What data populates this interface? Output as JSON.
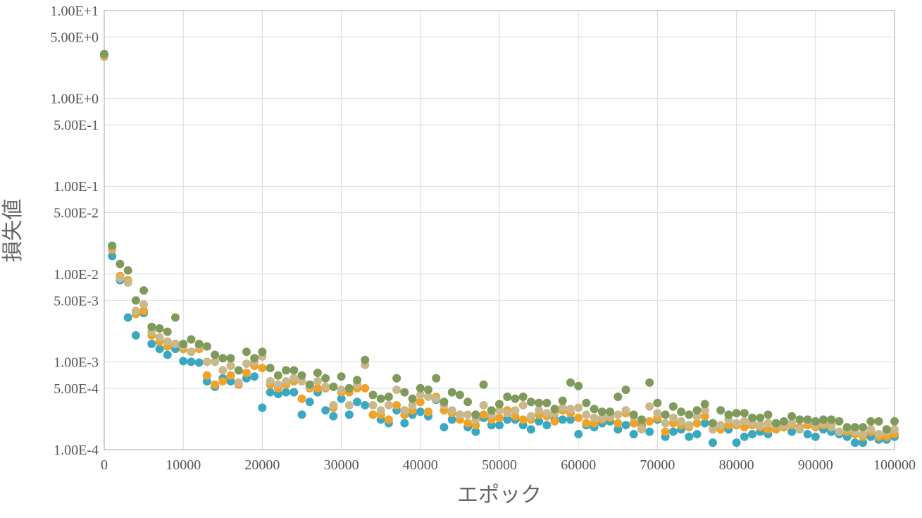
{
  "chart_data": {
    "type": "scatter",
    "xlabel": "エポック",
    "ylabel": "損失値",
    "xlim": [
      0,
      100000
    ],
    "ylim": [
      0.0001,
      10
    ],
    "yscale": "log",
    "grid": true,
    "legend": "none",
    "x_ticks": [
      {
        "value": 0,
        "label": "0"
      },
      {
        "value": 10000,
        "label": "10000"
      },
      {
        "value": 20000,
        "label": "20000"
      },
      {
        "value": 30000,
        "label": "30000"
      },
      {
        "value": 40000,
        "label": "40000"
      },
      {
        "value": 50000,
        "label": "50000"
      },
      {
        "value": 60000,
        "label": "60000"
      },
      {
        "value": 70000,
        "label": "70000"
      },
      {
        "value": 80000,
        "label": "80000"
      },
      {
        "value": 90000,
        "label": "90000"
      },
      {
        "value": 100000,
        "label": "100000"
      }
    ],
    "y_ticks": [
      {
        "value": 10,
        "label": "1.00E+1"
      },
      {
        "value": 5,
        "label": "5.00E+0"
      },
      {
        "value": 1,
        "label": "1.00E+0"
      },
      {
        "value": 0.5,
        "label": "5.00E-1"
      },
      {
        "value": 0.1,
        "label": "1.00E-1"
      },
      {
        "value": 0.05,
        "label": "5.00E-2"
      },
      {
        "value": 0.01,
        "label": "1.00E-2"
      },
      {
        "value": 0.005,
        "label": "5.00E-3"
      },
      {
        "value": 0.001,
        "label": "1.00E-3"
      },
      {
        "value": 0.0005,
        "label": "5.00E-4"
      },
      {
        "value": 0.0001,
        "label": "1.00E-4"
      }
    ],
    "series": [
      {
        "color": "#3aa8c1",
        "x": [
          0,
          1000,
          2000,
          3000,
          4000,
          5000,
          6000,
          7000,
          8000,
          9000,
          10000,
          11000,
          12000,
          13000,
          14000,
          15000,
          16000,
          17000,
          18000,
          19000,
          20000,
          21000,
          22000,
          23000,
          24000,
          25000,
          26000,
          27000,
          28000,
          29000,
          30000,
          31000,
          32000,
          33000,
          34000,
          35000,
          36000,
          37000,
          38000,
          39000,
          40000,
          41000,
          42000,
          43000,
          44000,
          45000,
          46000,
          47000,
          48000,
          49000,
          50000,
          51000,
          52000,
          53000,
          54000,
          55000,
          56000,
          57000,
          58000,
          59000,
          60000,
          61000,
          62000,
          63000,
          64000,
          65000,
          66000,
          67000,
          68000,
          69000,
          70000,
          71000,
          72000,
          73000,
          74000,
          75000,
          76000,
          77000,
          78000,
          79000,
          80000,
          81000,
          82000,
          83000,
          84000,
          85000,
          86000,
          87000,
          88000,
          89000,
          90000,
          91000,
          92000,
          93000,
          94000,
          95000,
          96000,
          97000,
          98000,
          99000,
          100000
        ],
        "y": [
          3.0,
          0.016,
          0.0085,
          0.0032,
          0.002,
          0.0036,
          0.0016,
          0.0014,
          0.0012,
          0.0014,
          0.00102,
          0.001,
          0.00098,
          0.0006,
          0.00052,
          0.00065,
          0.0006,
          0.00055,
          0.00065,
          0.00068,
          0.0003,
          0.00045,
          0.00043,
          0.00045,
          0.00045,
          0.00025,
          0.00035,
          0.00045,
          0.00028,
          0.00024,
          0.00038,
          0.00025,
          0.00035,
          0.00032,
          0.00025,
          0.00022,
          0.0002,
          0.00028,
          0.0002,
          0.00025,
          0.00027,
          0.00024,
          0.00037,
          0.00018,
          0.00022,
          0.00025,
          0.00018,
          0.00016,
          0.00023,
          0.00019,
          0.00019,
          0.00022,
          0.00022,
          0.00019,
          0.00017,
          0.00021,
          0.00019,
          0.00022,
          0.00022,
          0.00022,
          0.00015,
          0.00019,
          0.00018,
          0.0002,
          0.00021,
          0.00017,
          0.00019,
          0.00015,
          0.00019,
          0.00016,
          0.00022,
          0.00014,
          0.00016,
          0.00017,
          0.00014,
          0.00015,
          0.0002,
          0.00012,
          0.00018,
          0.00017,
          0.00012,
          0.00014,
          0.00015,
          0.00016,
          0.00015,
          0.00017,
          0.00018,
          0.00016,
          0.00017,
          0.00015,
          0.00014,
          0.00017,
          0.00016,
          0.00015,
          0.00014,
          0.00012,
          0.00012,
          0.00014,
          0.00013,
          0.00013,
          0.00014
        ]
      },
      {
        "color": "#f0a229",
        "x": [
          0,
          1000,
          2000,
          3000,
          4000,
          5000,
          6000,
          7000,
          8000,
          9000,
          10000,
          11000,
          12000,
          13000,
          14000,
          15000,
          16000,
          17000,
          18000,
          19000,
          20000,
          21000,
          22000,
          23000,
          24000,
          25000,
          26000,
          27000,
          28000,
          29000,
          30000,
          31000,
          32000,
          33000,
          34000,
          35000,
          36000,
          37000,
          38000,
          39000,
          40000,
          41000,
          42000,
          43000,
          44000,
          45000,
          46000,
          47000,
          48000,
          49000,
          50000,
          51000,
          52000,
          53000,
          54000,
          55000,
          56000,
          57000,
          58000,
          59000,
          60000,
          61000,
          62000,
          63000,
          64000,
          65000,
          66000,
          67000,
          68000,
          69000,
          70000,
          71000,
          72000,
          73000,
          74000,
          75000,
          76000,
          77000,
          78000,
          79000,
          80000,
          81000,
          82000,
          83000,
          84000,
          85000,
          86000,
          87000,
          88000,
          89000,
          90000,
          91000,
          92000,
          93000,
          94000,
          95000,
          96000,
          97000,
          98000,
          99000,
          100000
        ],
        "y": [
          3.0,
          0.019,
          0.0095,
          0.0085,
          0.0035,
          0.0038,
          0.002,
          0.0017,
          0.0015,
          0.0016,
          0.0014,
          0.0013,
          0.0014,
          0.0007,
          0.00055,
          0.0006,
          0.0007,
          0.00055,
          0.00075,
          0.0009,
          0.00085,
          0.00055,
          0.0005,
          0.00055,
          0.0006,
          0.00038,
          0.0005,
          0.0005,
          0.0005,
          0.0003,
          0.00045,
          0.00045,
          0.0005,
          0.0005,
          0.00025,
          0.00025,
          0.00022,
          0.00032,
          0.00025,
          0.00028,
          0.00035,
          0.00027,
          0.0004,
          0.00028,
          0.00026,
          0.00022,
          0.0002,
          0.00019,
          0.00025,
          0.00022,
          0.00023,
          0.00028,
          0.00024,
          0.00022,
          0.00022,
          0.00025,
          0.00024,
          0.00021,
          0.00028,
          0.00026,
          0.00023,
          0.0002,
          0.0002,
          0.00022,
          0.00023,
          0.0002,
          0.00026,
          0.0002,
          0.00018,
          0.00021,
          0.00023,
          0.00016,
          0.0002,
          0.00019,
          0.00018,
          0.0002,
          0.00024,
          0.0002,
          0.00017,
          0.00019,
          0.00019,
          0.00018,
          0.00019,
          0.00018,
          0.00017,
          0.00017,
          0.00018,
          0.00019,
          0.00018,
          0.00019,
          0.00018,
          0.00019,
          0.00019,
          0.00016,
          0.00016,
          0.00015,
          0.00014,
          0.00016,
          0.00014,
          0.00014,
          0.00015
        ]
      },
      {
        "color": "#c8b88a",
        "x": [
          0,
          1000,
          2000,
          3000,
          4000,
          5000,
          6000,
          7000,
          8000,
          9000,
          10000,
          11000,
          12000,
          13000,
          14000,
          15000,
          16000,
          17000,
          18000,
          19000,
          20000,
          21000,
          22000,
          23000,
          24000,
          25000,
          26000,
          27000,
          28000,
          29000,
          30000,
          31000,
          32000,
          33000,
          34000,
          35000,
          36000,
          37000,
          38000,
          39000,
          40000,
          41000,
          42000,
          43000,
          44000,
          45000,
          46000,
          47000,
          48000,
          49000,
          50000,
          51000,
          52000,
          53000,
          54000,
          55000,
          56000,
          57000,
          58000,
          59000,
          60000,
          61000,
          62000,
          63000,
          64000,
          65000,
          66000,
          67000,
          68000,
          69000,
          70000,
          71000,
          72000,
          73000,
          74000,
          75000,
          76000,
          77000,
          78000,
          79000,
          80000,
          81000,
          82000,
          83000,
          84000,
          85000,
          86000,
          87000,
          88000,
          89000,
          90000,
          91000,
          92000,
          93000,
          94000,
          95000,
          96000,
          97000,
          98000,
          99000,
          100000
        ],
        "y": [
          3.1,
          0.02,
          0.009,
          0.008,
          0.0038,
          0.0045,
          0.0022,
          0.0019,
          0.0017,
          0.0016,
          0.0015,
          0.0013,
          0.0015,
          0.001,
          0.001,
          0.0008,
          0.0009,
          0.00058,
          0.00095,
          0.001,
          0.00115,
          0.0006,
          0.00055,
          0.0006,
          0.00065,
          0.0006,
          0.00052,
          0.0006,
          0.00052,
          0.00032,
          0.00048,
          0.00032,
          0.00055,
          0.00092,
          0.00032,
          0.00028,
          0.00032,
          0.00048,
          0.00028,
          0.00032,
          0.00042,
          0.0004,
          0.00038,
          0.00032,
          0.00028,
          0.00025,
          0.00025,
          0.00022,
          0.00032,
          0.00025,
          0.00028,
          0.00026,
          0.00028,
          0.00032,
          0.00024,
          0.00028,
          0.00026,
          0.00026,
          0.0003,
          0.00029,
          0.0003,
          0.00025,
          0.00023,
          0.00023,
          0.00024,
          0.00025,
          0.00028,
          0.00024,
          0.00017,
          0.00031,
          0.00026,
          0.0002,
          0.00023,
          0.00021,
          0.00019,
          0.00024,
          0.00028,
          0.00017,
          0.00019,
          0.00022,
          0.0002,
          0.00021,
          0.0002,
          0.00019,
          0.0002,
          0.00019,
          0.00019,
          0.0002,
          0.00017,
          0.00021,
          0.00019,
          0.0002,
          0.00018,
          0.00016,
          0.00017,
          0.00016,
          0.00015,
          0.00017,
          0.00015,
          0.00016,
          0.00017
        ]
      },
      {
        "color": "#7f9a5b",
        "x": [
          0,
          1000,
          2000,
          3000,
          4000,
          5000,
          6000,
          7000,
          8000,
          9000,
          10000,
          11000,
          12000,
          13000,
          14000,
          15000,
          16000,
          17000,
          18000,
          19000,
          20000,
          21000,
          22000,
          23000,
          24000,
          25000,
          26000,
          27000,
          28000,
          29000,
          30000,
          31000,
          32000,
          33000,
          34000,
          35000,
          36000,
          37000,
          38000,
          39000,
          40000,
          41000,
          42000,
          43000,
          44000,
          45000,
          46000,
          47000,
          48000,
          49000,
          50000,
          51000,
          52000,
          53000,
          54000,
          55000,
          56000,
          57000,
          58000,
          59000,
          60000,
          61000,
          62000,
          63000,
          64000,
          65000,
          66000,
          67000,
          68000,
          69000,
          70000,
          71000,
          72000,
          73000,
          74000,
          75000,
          76000,
          77000,
          78000,
          79000,
          80000,
          81000,
          82000,
          83000,
          84000,
          85000,
          86000,
          87000,
          88000,
          89000,
          90000,
          91000,
          92000,
          93000,
          94000,
          95000,
          96000,
          97000,
          98000,
          99000,
          100000
        ],
        "y": [
          3.2,
          0.021,
          0.013,
          0.011,
          0.005,
          0.0065,
          0.0025,
          0.0024,
          0.0022,
          0.0032,
          0.0016,
          0.0018,
          0.0016,
          0.0015,
          0.0012,
          0.0011,
          0.0011,
          0.0008,
          0.0013,
          0.0011,
          0.0013,
          0.00085,
          0.0007,
          0.0008,
          0.0008,
          0.0007,
          0.00055,
          0.00075,
          0.00065,
          0.00052,
          0.00068,
          0.0005,
          0.00062,
          0.00105,
          0.00042,
          0.00038,
          0.0004,
          0.00065,
          0.00045,
          0.00038,
          0.0005,
          0.00048,
          0.00065,
          0.00035,
          0.00045,
          0.00042,
          0.00035,
          0.00025,
          0.00055,
          0.00028,
          0.00033,
          0.0004,
          0.00038,
          0.0004,
          0.00035,
          0.00034,
          0.00034,
          0.00029,
          0.00036,
          0.00058,
          0.00053,
          0.00034,
          0.00029,
          0.00027,
          0.00027,
          0.0004,
          0.00048,
          0.00025,
          0.00022,
          0.00058,
          0.00034,
          0.00025,
          0.00031,
          0.00027,
          0.00025,
          0.00028,
          0.00033,
          0.0002,
          0.00028,
          0.00025,
          0.00026,
          0.00026,
          0.00023,
          0.00023,
          0.00025,
          0.0002,
          0.00021,
          0.00024,
          0.00022,
          0.00022,
          0.00021,
          0.00022,
          0.00022,
          0.00021,
          0.00018,
          0.00018,
          0.00018,
          0.00021,
          0.00021,
          0.00017,
          0.00021
        ]
      }
    ]
  }
}
